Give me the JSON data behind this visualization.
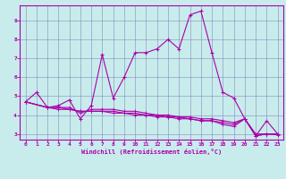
{
  "xlabel": "Windchill (Refroidissement éolien,°C)",
  "xlim": [
    -0.5,
    23.5
  ],
  "ylim": [
    2.7,
    9.8
  ],
  "yticks": [
    3,
    4,
    5,
    6,
    7,
    8,
    9
  ],
  "xticks": [
    0,
    1,
    2,
    3,
    4,
    5,
    6,
    7,
    8,
    9,
    10,
    11,
    12,
    13,
    14,
    15,
    16,
    17,
    18,
    19,
    20,
    21,
    22,
    23
  ],
  "background_color": "#c8ecec",
  "grid_color": "#8888bb",
  "line_color": "#aa00aa",
  "series1_x": [
    0,
    1,
    2,
    3,
    4,
    5,
    6,
    7,
    8,
    9,
    10,
    11,
    12,
    13,
    14,
    15,
    16,
    17,
    18,
    19,
    20,
    21,
    22,
    23
  ],
  "series1_y": [
    4.7,
    5.2,
    4.4,
    4.5,
    4.8,
    3.8,
    4.5,
    7.2,
    4.9,
    6.0,
    7.3,
    7.3,
    7.5,
    8.0,
    7.5,
    9.3,
    9.5,
    7.3,
    5.2,
    4.9,
    3.8,
    2.9,
    3.0,
    3.0
  ],
  "series2_x": [
    0,
    2,
    3,
    4,
    5,
    6,
    7,
    8,
    9,
    10,
    11,
    12,
    13,
    14,
    15,
    16,
    17,
    18,
    19,
    20,
    21,
    22,
    23
  ],
  "series2_y": [
    4.7,
    4.4,
    4.4,
    4.4,
    4.1,
    4.3,
    4.3,
    4.3,
    4.2,
    4.2,
    4.1,
    4.0,
    4.0,
    3.9,
    3.9,
    3.8,
    3.8,
    3.7,
    3.6,
    3.8,
    3.0,
    3.0,
    3.0
  ],
  "series3_x": [
    0,
    2,
    3,
    4,
    5,
    6,
    7,
    8,
    9,
    10,
    11,
    12,
    13,
    14,
    15,
    16,
    17,
    18,
    19,
    20,
    21,
    22,
    23
  ],
  "series3_y": [
    4.7,
    4.4,
    4.3,
    4.3,
    4.2,
    4.2,
    4.2,
    4.2,
    4.1,
    4.1,
    4.0,
    4.0,
    3.9,
    3.9,
    3.8,
    3.7,
    3.7,
    3.6,
    3.5,
    3.8,
    2.9,
    3.7,
    3.0
  ],
  "series4_x": [
    0,
    2,
    3,
    4,
    5,
    6,
    7,
    8,
    9,
    10,
    11,
    12,
    13,
    14,
    15,
    16,
    17,
    18,
    19,
    20,
    21,
    22,
    23
  ],
  "series4_y": [
    4.7,
    4.4,
    4.4,
    4.3,
    4.2,
    4.2,
    4.2,
    4.1,
    4.1,
    4.0,
    4.0,
    3.9,
    3.9,
    3.8,
    3.8,
    3.7,
    3.7,
    3.5,
    3.4,
    3.8,
    2.9,
    3.0,
    2.95
  ]
}
